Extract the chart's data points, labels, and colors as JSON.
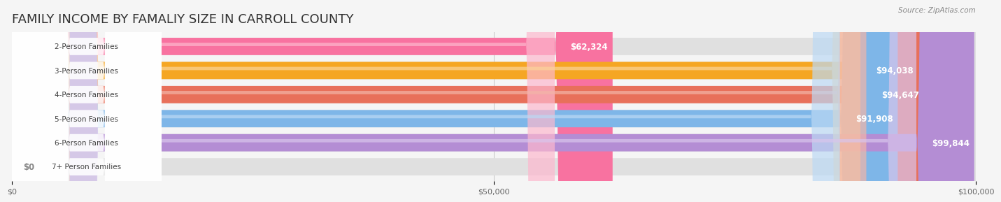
{
  "title": "FAMILY INCOME BY FAMALIY SIZE IN CARROLL COUNTY",
  "source": "Source: ZipAtlas.com",
  "categories": [
    "2-Person Families",
    "3-Person Families",
    "4-Person Families",
    "5-Person Families",
    "6-Person Families",
    "7+ Person Families"
  ],
  "values": [
    62324,
    94038,
    94647,
    91908,
    99844,
    0
  ],
  "labels": [
    "$62,324",
    "$94,038",
    "$94,647",
    "$91,908",
    "$99,844",
    "$0"
  ],
  "bar_colors": [
    "#F872A0",
    "#F5A623",
    "#E8705A",
    "#7EB6E8",
    "#B48DD4",
    "#7DD6D6"
  ],
  "bar_light_colors": [
    "#FDB8CE",
    "#FAD49A",
    "#F3B5A8",
    "#BCD9F4",
    "#D9C5EC",
    "#B8ECEC"
  ],
  "background_color": "#f5f5f5",
  "bar_bg_color": "#e8e8e8",
  "xlim": [
    0,
    100000
  ],
  "xtick_labels": [
    "$0",
    "$50,000",
    "$100,000"
  ],
  "xtick_values": [
    0,
    50000,
    100000
  ],
  "title_fontsize": 13,
  "label_fontsize": 8.5,
  "bar_height": 0.72,
  "bar_gap": 0.12
}
